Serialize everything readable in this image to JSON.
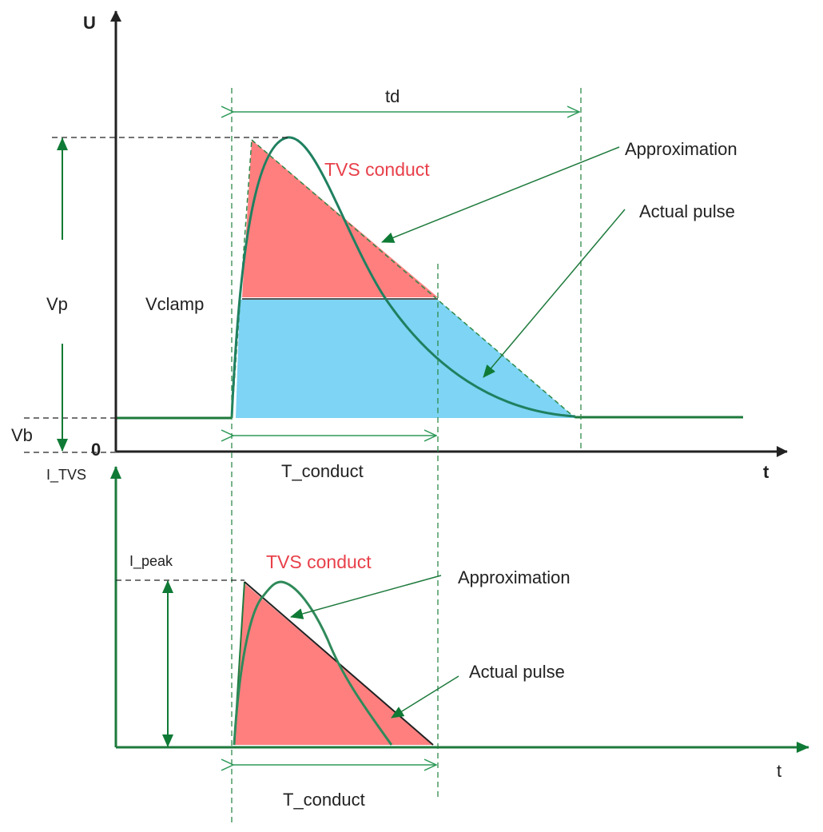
{
  "colors": {
    "axis_green": "#1e7a3c",
    "conduct_red": "#ff7f7f",
    "clamp_blue": "#7dd4f4",
    "label_red": "#e8404a"
  },
  "top": {
    "y_axis_label": "U",
    "x_axis_label": "t",
    "origin_label": "0",
    "td_label": "td",
    "vp_label": "Vp",
    "vb_label": "Vb",
    "vclamp_label": "Vclamp",
    "tvs_conduct_label": "TVS conduct",
    "approximation_label": "Approximation",
    "actual_pulse_label": "Actual pulse",
    "t_conduct_label": "T_conduct"
  },
  "bottom": {
    "y_axis_label": "I_TVS",
    "x_axis_label": "t",
    "ipeak_label": "I_peak",
    "tvs_conduct_label": "TVS conduct",
    "approximation_label": "Approximation",
    "actual_pulse_label": "Actual pulse",
    "t_conduct_label": "T_conduct"
  }
}
